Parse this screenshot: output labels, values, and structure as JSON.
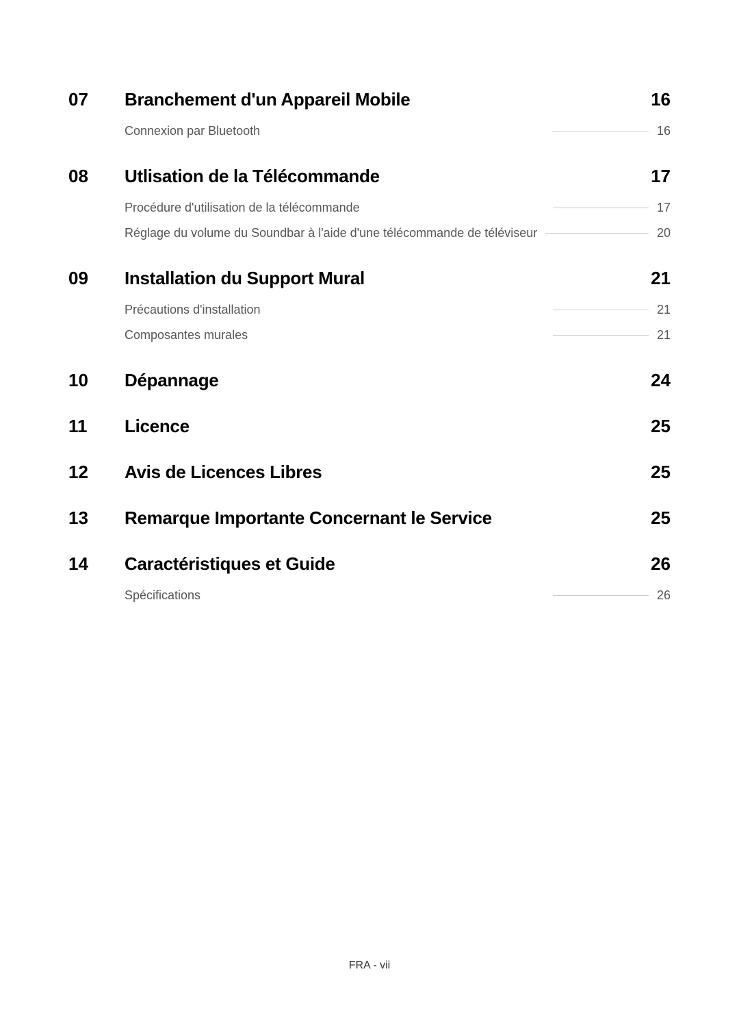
{
  "sections": [
    {
      "number": "07",
      "title": "Branchement d'un Appareil Mobile",
      "page": "16",
      "items": [
        {
          "text": "Connexion par Bluetooth",
          "page": "16"
        }
      ]
    },
    {
      "number": "08",
      "title": "Utlisation de la Télécommande",
      "page": "17",
      "items": [
        {
          "text": "Procédure d'utilisation de la télécommande",
          "page": "17"
        },
        {
          "text": "Réglage du volume du Soundbar à l'aide d'une télécommande de téléviseur",
          "page": "20"
        }
      ]
    },
    {
      "number": "09",
      "title": "Installation du Support Mural",
      "page": "21",
      "items": [
        {
          "text": "Précautions d'installation",
          "page": "21"
        },
        {
          "text": "Composantes murales",
          "page": "21"
        }
      ]
    },
    {
      "number": "10",
      "title": "Dépannage",
      "page": "24",
      "items": []
    },
    {
      "number": "11",
      "title": "Licence",
      "page": "25",
      "items": []
    },
    {
      "number": "12",
      "title": "Avis de Licences Libres",
      "page": "25",
      "items": []
    },
    {
      "number": "13",
      "title": "Remarque Importante Concernant le Service",
      "page": "25",
      "items": []
    },
    {
      "number": "14",
      "title": "Caractéristiques et Guide",
      "page": "26",
      "items": [
        {
          "text": "Spécifications",
          "page": "26"
        }
      ]
    }
  ],
  "footer": "FRA - vii",
  "colors": {
    "background": "#ffffff",
    "primary_text": "#000000",
    "secondary_text": "#555555",
    "line": "#cccccc"
  },
  "typography": {
    "section_number_size": 26,
    "section_title_size": 26,
    "sub_item_size": 18,
    "footer_size": 16
  }
}
